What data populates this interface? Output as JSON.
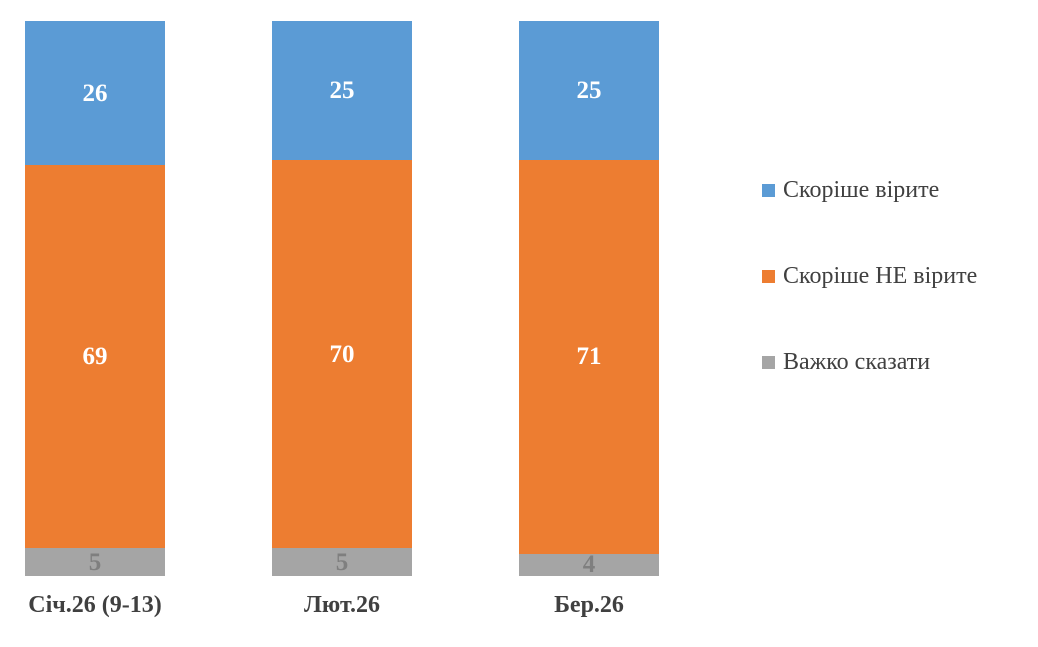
{
  "chart_data": {
    "type": "bar",
    "stacked": true,
    "orientation": "vertical",
    "title": "",
    "xlabel": "",
    "ylabel": "",
    "ylim": [
      0,
      100
    ],
    "grid": false,
    "axes_visible": false,
    "data_labels": true,
    "legend_position": "right",
    "categories": [
      "Січ.26 (9-13)",
      "Лют.26",
      "Бер.26"
    ],
    "series": [
      {
        "name": "Скоріше вірите",
        "color": "#5B9BD5",
        "label_color": "#FFFFFF",
        "values": [
          26,
          25,
          25
        ]
      },
      {
        "name": "Скоріше НЕ вірите",
        "color": "#ED7D31",
        "label_color": "#FFFFFF",
        "values": [
          69,
          70,
          71
        ]
      },
      {
        "name": "Важко сказати",
        "color": "#A5A5A5",
        "label_color": "#7F7F7F",
        "values": [
          5,
          5,
          4
        ]
      }
    ]
  },
  "style": {
    "background": "#FFFFFF",
    "category_label_color": "#404040",
    "legend_text_color": "#404040"
  }
}
